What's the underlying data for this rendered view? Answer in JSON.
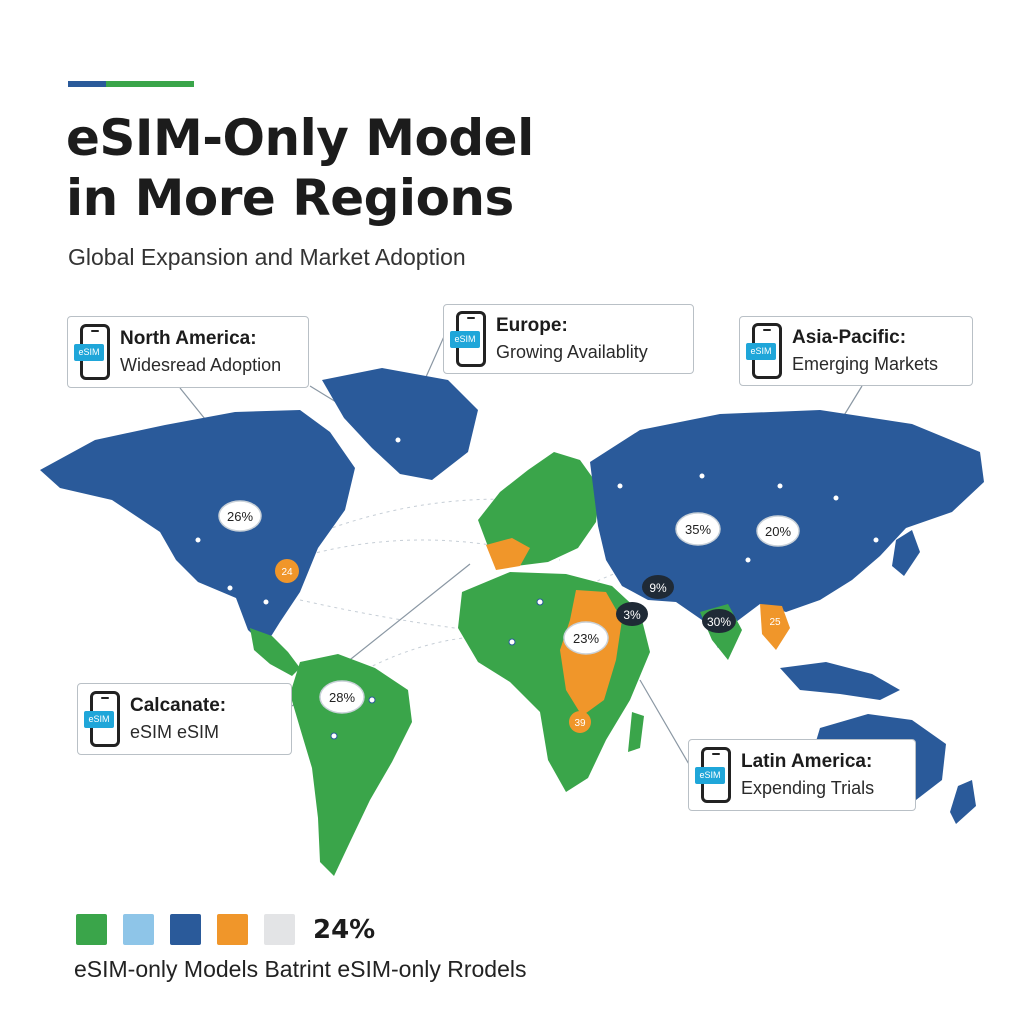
{
  "title": {
    "line1": "eSIM-Only Model",
    "line2": "in More Regions"
  },
  "subtitle": "Global Expansion and Market Adoption",
  "colors": {
    "green": "#3aa54a",
    "light_blue": "#8ec5e8",
    "blue": "#2a5a9a",
    "orange": "#f0962a",
    "gray": "#e3e4e6",
    "ocean": "#ffffff"
  },
  "callouts": [
    {
      "icon": "phone-esim-icon",
      "chip": "eSIM",
      "title": "North America:",
      "text": "Widesread Adoption"
    },
    {
      "icon": "phone-esim-icon",
      "chip": "eSIM",
      "title": "Europe:",
      "text": "Growing Availablity"
    },
    {
      "icon": "phone-esim-icon",
      "chip": "eSIM",
      "title": "Asia-Pacific:",
      "text": "Emerging Markets"
    },
    {
      "icon": "phone-esim-icon",
      "chip": "eSIM",
      "title": "Calcanate:",
      "text": "eSIM eSIM"
    },
    {
      "icon": "phone-esim-icon",
      "chip": "eSIM",
      "title": "Latin America:",
      "text": "Expending Trials"
    }
  ],
  "markers": [
    {
      "label": "26%",
      "style": "white"
    },
    {
      "label": "35%",
      "style": "white"
    },
    {
      "label": "20%",
      "style": "white"
    },
    {
      "label": "23%",
      "style": "white"
    },
    {
      "label": "28%",
      "style": "white"
    },
    {
      "label": "9%",
      "style": "dark"
    },
    {
      "label": "3%",
      "style": "dark"
    },
    {
      "label": "30%",
      "style": "dark"
    },
    {
      "label": "24",
      "style": "orange"
    },
    {
      "label": "39",
      "style": "orange"
    },
    {
      "label": "25",
      "style": "orange"
    }
  ],
  "legend": {
    "value": "24%",
    "caption": "eSIM-only Models Batrint eSIM-only Rrodels"
  }
}
